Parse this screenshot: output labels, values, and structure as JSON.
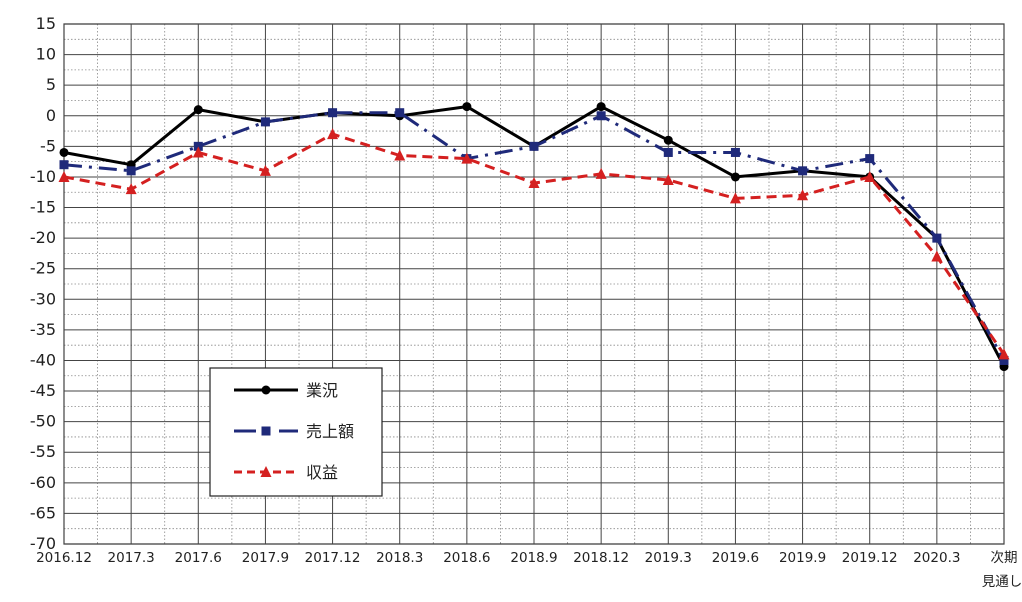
{
  "chart_data": {
    "type": "line",
    "categories": [
      "2016.12",
      "2017.3",
      "2017.6",
      "2017.9",
      "2017.12",
      "2018.3",
      "2018.6",
      "2018.9",
      "2018.12",
      "2019.3",
      "2019.6",
      "2019.9",
      "2019.12",
      "2020.3",
      "次期"
    ],
    "category_sublabels": [
      "",
      "",
      "",
      "",
      "",
      "",
      "",
      "",
      "",
      "",
      "",
      "",
      "",
      "",
      "見通し"
    ],
    "ylim": [
      -70,
      15
    ],
    "yticks": [
      15,
      10,
      5,
      0,
      -5,
      -10,
      -15,
      -20,
      -25,
      -30,
      -35,
      -40,
      -45,
      -50,
      -55,
      -60,
      -65,
      -70
    ],
    "xlabel": "",
    "ylabel": "",
    "grid": "on",
    "legend_position": "lower-left",
    "series": [
      {
        "name": "業況",
        "color": "#000000",
        "line_style": "solid",
        "marker": "circle",
        "values": [
          -6,
          -8,
          1,
          -1,
          0.5,
          0,
          1.5,
          -5,
          1.5,
          -4,
          -10,
          -9,
          -10,
          -20,
          -41
        ]
      },
      {
        "name": "売上額",
        "color": "#1f2a7a",
        "line_style": "dash-dot",
        "marker": "square",
        "values": [
          -8,
          -9,
          -5,
          -1,
          0.5,
          0.5,
          -7,
          -5,
          0,
          -6,
          -6,
          -9,
          -7,
          -20,
          -40
        ]
      },
      {
        "name": "収益",
        "color": "#d42020",
        "line_style": "dashed",
        "marker": "triangle",
        "values": [
          -10,
          -12,
          -6,
          -9,
          -3,
          -6.5,
          -7,
          -11,
          -9.5,
          -10.5,
          -13.5,
          -13,
          -10,
          -23,
          -39
        ]
      }
    ]
  }
}
